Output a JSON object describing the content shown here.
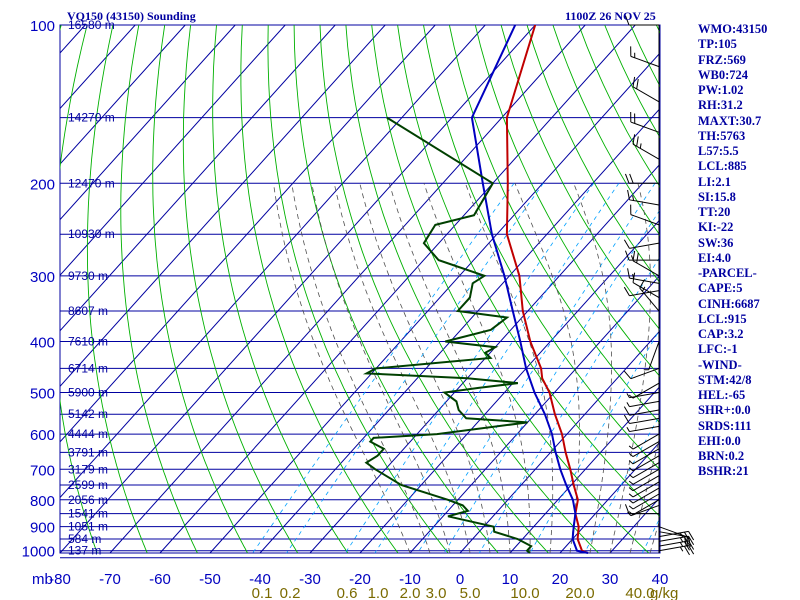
{
  "header": {
    "station": "VQ150 (43150) Sounding",
    "time": "1100Z 26 NOV 25"
  },
  "colors": {
    "grid": "#0000a0",
    "dry_adiabat": "#00b000",
    "moist_adiabat": "#505050",
    "mixing_ratio": "#00a0ff",
    "temperature": "#c00000",
    "parcel": "#0000c0",
    "dewpoint": "#004000",
    "wind": "#000000",
    "mixing_label": "#7a6a00"
  },
  "chart_data": {
    "type": "skew-t",
    "pressure_axis": {
      "unit_label": "mb",
      "ticks": [
        100,
        200,
        300,
        400,
        500,
        600,
        700,
        800,
        900,
        1000
      ],
      "range": [
        100,
        1000
      ]
    },
    "temperature_axis": {
      "ticks": [
        "-80",
        "-70",
        "-60",
        "-50",
        "-40",
        "-30",
        "-20",
        "-10",
        "0",
        "10",
        "20",
        "30",
        "40"
      ],
      "range": [
        -80,
        40
      ]
    },
    "mixing_ratio_labels": [
      "0.1",
      "0.2",
      "0.6",
      "1.0",
      "2.0",
      "3.0",
      "5.0",
      "10.0",
      "20.0",
      "40.0"
    ],
    "mixing_ratio_unit": "g/kg",
    "height_labels": [
      {
        "p": 100,
        "label": "16580 m"
      },
      {
        "p": 150,
        "label": "14270 m"
      },
      {
        "p": 200,
        "label": "12470 m"
      },
      {
        "p": 250,
        "label": "10930 m"
      },
      {
        "p": 300,
        "label": "9730 m"
      },
      {
        "p": 350,
        "label": "8607 m"
      },
      {
        "p": 400,
        "label": "7610 m"
      },
      {
        "p": 450,
        "label": "6714 m"
      },
      {
        "p": 500,
        "label": "5900 m"
      },
      {
        "p": 550,
        "label": "5142 m"
      },
      {
        "p": 600,
        "label": "4444 m"
      },
      {
        "p": 650,
        "label": "3791 m"
      },
      {
        "p": 700,
        "label": "3179 m"
      },
      {
        "p": 750,
        "label": "2599 m"
      },
      {
        "p": 800,
        "label": "2056 m"
      },
      {
        "p": 850,
        "label": "1541 m"
      },
      {
        "p": 900,
        "label": "1051 m"
      },
      {
        "p": 950,
        "label": "584 m"
      },
      {
        "p": 1000,
        "label": "137 m"
      }
    ],
    "series": [
      {
        "name": "temperature",
        "points": [
          [
            100,
            -80
          ],
          [
            150,
            -69
          ],
          [
            200,
            -57
          ],
          [
            250,
            -48
          ],
          [
            300,
            -38
          ],
          [
            350,
            -31
          ],
          [
            400,
            -24
          ],
          [
            450,
            -17
          ],
          [
            470,
            -15
          ],
          [
            500,
            -11
          ],
          [
            550,
            -6
          ],
          [
            600,
            -1
          ],
          [
            650,
            3
          ],
          [
            700,
            7
          ],
          [
            750,
            10.5
          ],
          [
            800,
            14
          ],
          [
            850,
            16
          ],
          [
            900,
            19
          ],
          [
            950,
            21
          ],
          [
            1000,
            24
          ],
          [
            1010,
            25.6
          ]
        ]
      },
      {
        "name": "parcel",
        "points": [
          [
            100,
            -84
          ],
          [
            150,
            -76
          ],
          [
            200,
            -62
          ],
          [
            250,
            -51
          ],
          [
            300,
            -41
          ],
          [
            350,
            -33
          ],
          [
            400,
            -26
          ],
          [
            450,
            -20
          ],
          [
            500,
            -14
          ],
          [
            550,
            -8
          ],
          [
            600,
            -3
          ],
          [
            650,
            1
          ],
          [
            700,
            5
          ],
          [
            750,
            9
          ],
          [
            800,
            13
          ],
          [
            850,
            16
          ],
          [
            900,
            18
          ],
          [
            950,
            20
          ],
          [
            1000,
            23
          ],
          [
            1010,
            25.6
          ]
        ]
      },
      {
        "name": "dewpoint",
        "points": [
          [
            150,
            -93
          ],
          [
            200,
            -60
          ],
          [
            230,
            -58
          ],
          [
            240,
            -64
          ],
          [
            260,
            -63
          ],
          [
            280,
            -57
          ],
          [
            300,
            -45
          ],
          [
            310,
            -46
          ],
          [
            330,
            -44
          ],
          [
            350,
            -44
          ],
          [
            360,
            -33
          ],
          [
            380,
            -34
          ],
          [
            400,
            -41
          ],
          [
            410,
            -30
          ],
          [
            420,
            -31
          ],
          [
            430,
            -29
          ],
          [
            450,
            -50
          ],
          [
            460,
            -51
          ],
          [
            470,
            -30
          ],
          [
            480,
            -19
          ],
          [
            490,
            -26
          ],
          [
            500,
            -32
          ],
          [
            520,
            -28
          ],
          [
            540,
            -26
          ],
          [
            560,
            -23
          ],
          [
            570,
            -10
          ],
          [
            600,
            -26
          ],
          [
            610,
            -38
          ],
          [
            620,
            -38
          ],
          [
            640,
            -34
          ],
          [
            660,
            -34
          ],
          [
            680,
            -35
          ],
          [
            700,
            -32
          ],
          [
            750,
            -24
          ],
          [
            800,
            -12
          ],
          [
            820,
            -8
          ],
          [
            840,
            -6
          ],
          [
            860,
            -9
          ],
          [
            900,
            2
          ],
          [
            920,
            3
          ],
          [
            950,
            9
          ],
          [
            980,
            13
          ],
          [
            1000,
            13
          ],
          [
            1010,
            14
          ]
        ]
      }
    ],
    "wind_levels": [
      100,
      120,
      140,
      160,
      180,
      200,
      220,
      240,
      260,
      280,
      300,
      310,
      320,
      330,
      350,
      400,
      450,
      480,
      500,
      520,
      540,
      560,
      580,
      600,
      620,
      640,
      660,
      680,
      700,
      720,
      740,
      760,
      780,
      800,
      820,
      850,
      900,
      920,
      940,
      960,
      980,
      1000
    ],
    "wind_speeds": [
      10,
      15,
      20,
      20,
      25,
      20,
      15,
      10,
      10,
      15,
      20,
      15,
      10,
      10,
      15,
      5,
      10,
      5,
      5,
      5,
      10,
      10,
      5,
      5,
      5,
      5,
      5,
      5,
      5,
      5,
      5,
      5,
      5,
      5,
      5,
      10,
      10,
      20,
      25,
      25,
      25,
      25
    ],
    "wind_dirs": [
      270,
      290,
      300,
      290,
      300,
      270,
      280,
      290,
      260,
      270,
      300,
      280,
      260,
      300,
      320,
      200,
      250,
      240,
      260,
      260,
      260,
      260,
      260,
      240,
      240,
      240,
      240,
      240,
      240,
      240,
      240,
      240,
      240,
      240,
      250,
      270,
      110,
      100,
      80,
      80,
      80,
      80
    ]
  },
  "indices": [
    "WMO:43150",
    "TP:105",
    "FRZ:569",
    "WB0:724",
    "PW:1.02",
    "RH:31.2",
    "MAXT:30.7",
    "TH:5763",
    "L57:5.5",
    "LCL:885",
    "LI:2.1",
    "SI:15.8",
    "TT:20",
    "KI:-22",
    "SW:36",
    "EI:4.0",
    "-PARCEL-",
    "CAPE:5",
    "CINH:6687",
    "LCL:915",
    "CAP:3.2",
    "LFC:-1",
    "-WIND-",
    "STM:42/8",
    "HEL:-65",
    "SHR+:0.0",
    "SRDS:111",
    "EHI:0.0",
    "BRN:0.2",
    "BSHR:21"
  ]
}
